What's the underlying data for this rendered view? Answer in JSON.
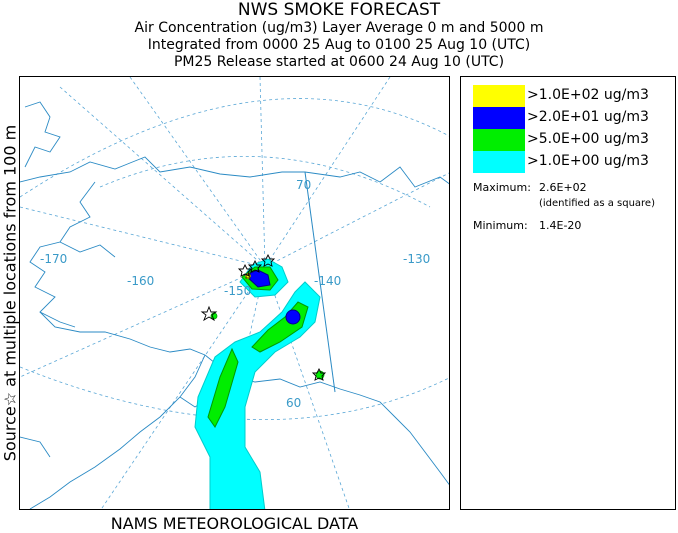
{
  "header": {
    "title": "NWS SMOKE FORECAST",
    "line2": "Air Concentration (ug/m3) Layer Average    0 m and  5000 m",
    "line3": "Integrated from 0000 25 Aug to 0100 25 Aug 10 (UTC)",
    "line4": "PM25 Release started at 0600 24 Aug 10 (UTC)"
  },
  "side_label": "Source☆ at multiple locations from  100 m",
  "footer": "NAMS METEOROLOGICAL DATA",
  "map": {
    "longitude_labels": [
      "-170",
      "-160",
      "-150",
      "-140",
      "-130"
    ],
    "latitude_labels": [
      "70",
      "60"
    ]
  },
  "legend": {
    "items": [
      {
        "label": ">1.0E+02 ug/m3",
        "color": "#ffff00"
      },
      {
        "label": ">2.0E+01 ug/m3",
        "color": "#0000ff"
      },
      {
        "label": ">5.0E+00 ug/m3",
        "color": "#00ee00"
      },
      {
        "label": ">1.0E+00 ug/m3",
        "color": "#00ffff"
      }
    ],
    "maximum_label": "Maximum:",
    "maximum_value": "2.6E+02",
    "maximum_note": "(identified as a square)",
    "minimum_label": "Minimum:",
    "minimum_value": "1.4E-20"
  }
}
